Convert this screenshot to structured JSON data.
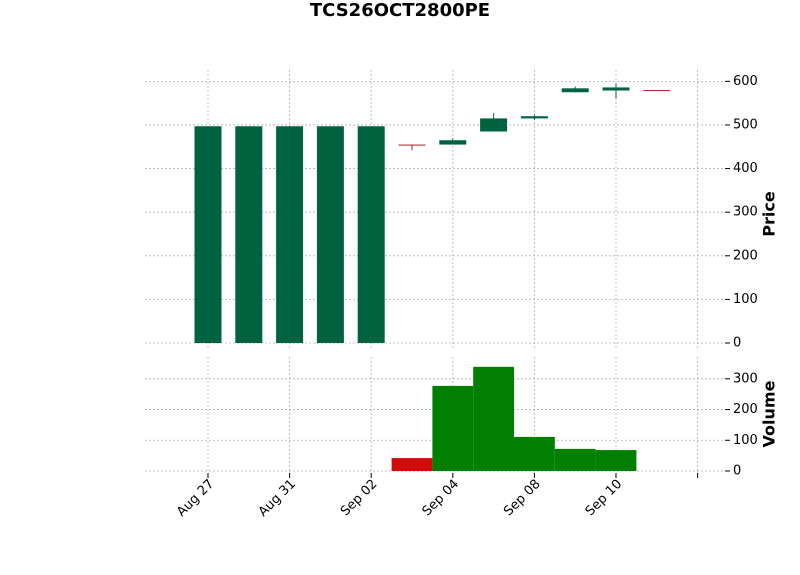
{
  "chart_data": {
    "type": "candlestick",
    "title": "TCS26OCT2800PE",
    "categories": [
      "Aug 27",
      null,
      "Aug 31",
      null,
      "Sep 02",
      null,
      "Sep 04",
      null,
      "Sep 08",
      null,
      "Sep 10",
      null
    ],
    "open": [
      0,
      0,
      0,
      0,
      0,
      455,
      455,
      485,
      515,
      575,
      579,
      580
    ],
    "high": [
      497,
      497,
      497,
      497,
      497,
      455,
      469,
      527,
      524,
      588,
      595,
      580
    ],
    "low": [
      0,
      0,
      0,
      0,
      0,
      442,
      455,
      485,
      511,
      575,
      561,
      579
    ],
    "close": [
      497,
      497,
      497,
      497,
      497,
      453,
      465,
      515,
      520,
      584,
      586,
      579
    ],
    "volume": [
      0,
      0,
      0,
      0,
      0,
      42,
      277,
      339,
      111,
      72,
      68,
      0
    ],
    "up_color": "#006340",
    "down_color": "#a02128",
    "volume_up_color": "#007f00",
    "volume_down_color": "#d60a0a",
    "ylabel": "Price",
    "ylim": [
      -16,
      626
    ],
    "yticks": [
      0,
      100,
      200,
      300,
      400,
      500,
      600
    ],
    "volume_label": "Volume",
    "volume_ylim": [
      0,
      371
    ],
    "volume_yticks": [
      0,
      100,
      200,
      300
    ],
    "grid": true
  }
}
